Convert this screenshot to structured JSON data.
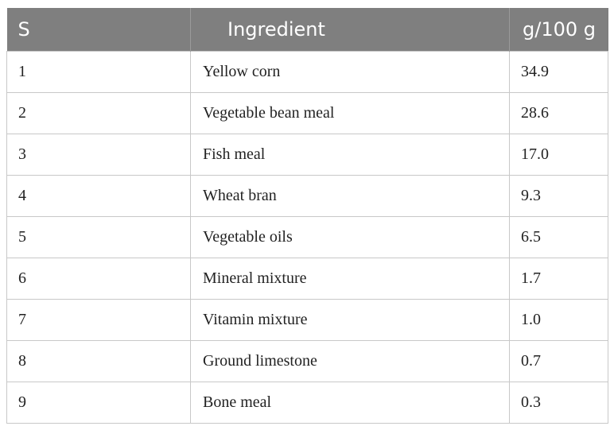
{
  "table": {
    "headers": {
      "s": "S",
      "ingredient": "Ingredient",
      "amount": "g/100 g"
    },
    "rows": [
      {
        "s": "1",
        "ingredient": "Yellow corn",
        "amount": "34.9"
      },
      {
        "s": "2",
        "ingredient": "Vegetable bean meal",
        "amount": "28.6"
      },
      {
        "s": "3",
        "ingredient": "Fish meal",
        "amount": "17.0"
      },
      {
        "s": "4",
        "ingredient": "Wheat bran",
        "amount": "9.3"
      },
      {
        "s": "5",
        "ingredient": "Vegetable oils",
        "amount": "6.5"
      },
      {
        "s": "6",
        "ingredient": "Mineral mixture",
        "amount": "1.7"
      },
      {
        "s": "7",
        "ingredient": "Vitamin mixture",
        "amount": "1.0"
      },
      {
        "s": "8",
        "ingredient": "Ground limestone",
        "amount": "0.7"
      },
      {
        "s": "9",
        "ingredient": "Bone meal",
        "amount": "0.3"
      }
    ],
    "colors": {
      "header_bg": "#7f7f7f",
      "header_text": "#ffffff",
      "border": "#c8c8c8"
    }
  }
}
